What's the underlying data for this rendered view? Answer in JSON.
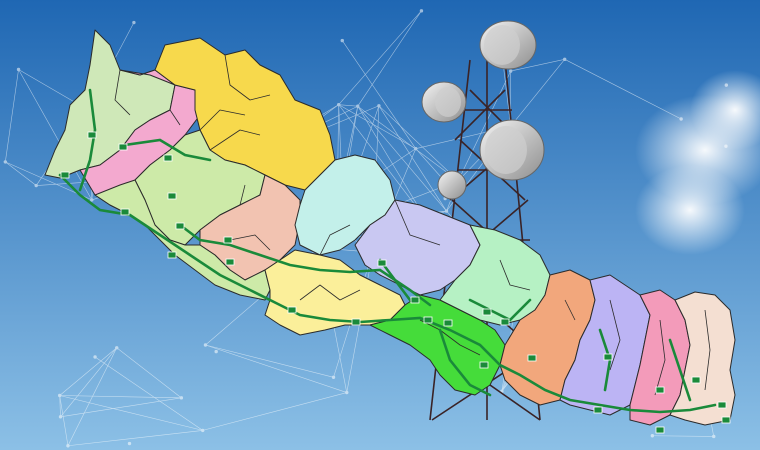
{
  "image": {
    "description_semantics": {
      "map_subject": "country-with-provinces",
      "background_object": "telecom-tower-with-dish-antennas"
    },
    "colors": {
      "sky_top": "#1f67b3",
      "sky_bottom": "#8cc0e6",
      "network_lines": "#ffffff",
      "road": "#1a8a3a",
      "district_border": "#2b2b2b",
      "tower_lattice": "#3a2326",
      "dish": "#d9d9d9"
    },
    "provinces": [
      {
        "id": "p-far-west-north",
        "color": "#cfe8b8"
      },
      {
        "id": "p-far-west-pink",
        "color": "#f3a9cf"
      },
      {
        "id": "p-karnali-yellow",
        "color": "#f7d94c"
      },
      {
        "id": "p-west-lightgreen",
        "color": "#cdeaa8"
      },
      {
        "id": "p-lumbini-peach",
        "color": "#f2c3b1"
      },
      {
        "id": "p-gandaki-cyan",
        "color": "#c3f0ea"
      },
      {
        "id": "p-bagmati-lavender",
        "color": "#c9c8f2"
      },
      {
        "id": "p-lumbini-south-yellow",
        "color": "#fbef9a"
      },
      {
        "id": "p-central-brightgreen",
        "color": "#45dc3a"
      },
      {
        "id": "p-bagmati-east-mint",
        "color": "#b6f1c4"
      },
      {
        "id": "p-koshi-salmon",
        "color": "#f2a77c"
      },
      {
        "id": "p-koshi-purple",
        "color": "#bcb4f4"
      },
      {
        "id": "p-koshi-rose",
        "color": "#f39bba"
      },
      {
        "id": "p-koshi-far-east-cream",
        "color": "#f4dfd2"
      }
    ],
    "road_sign_count_label": ""
  }
}
